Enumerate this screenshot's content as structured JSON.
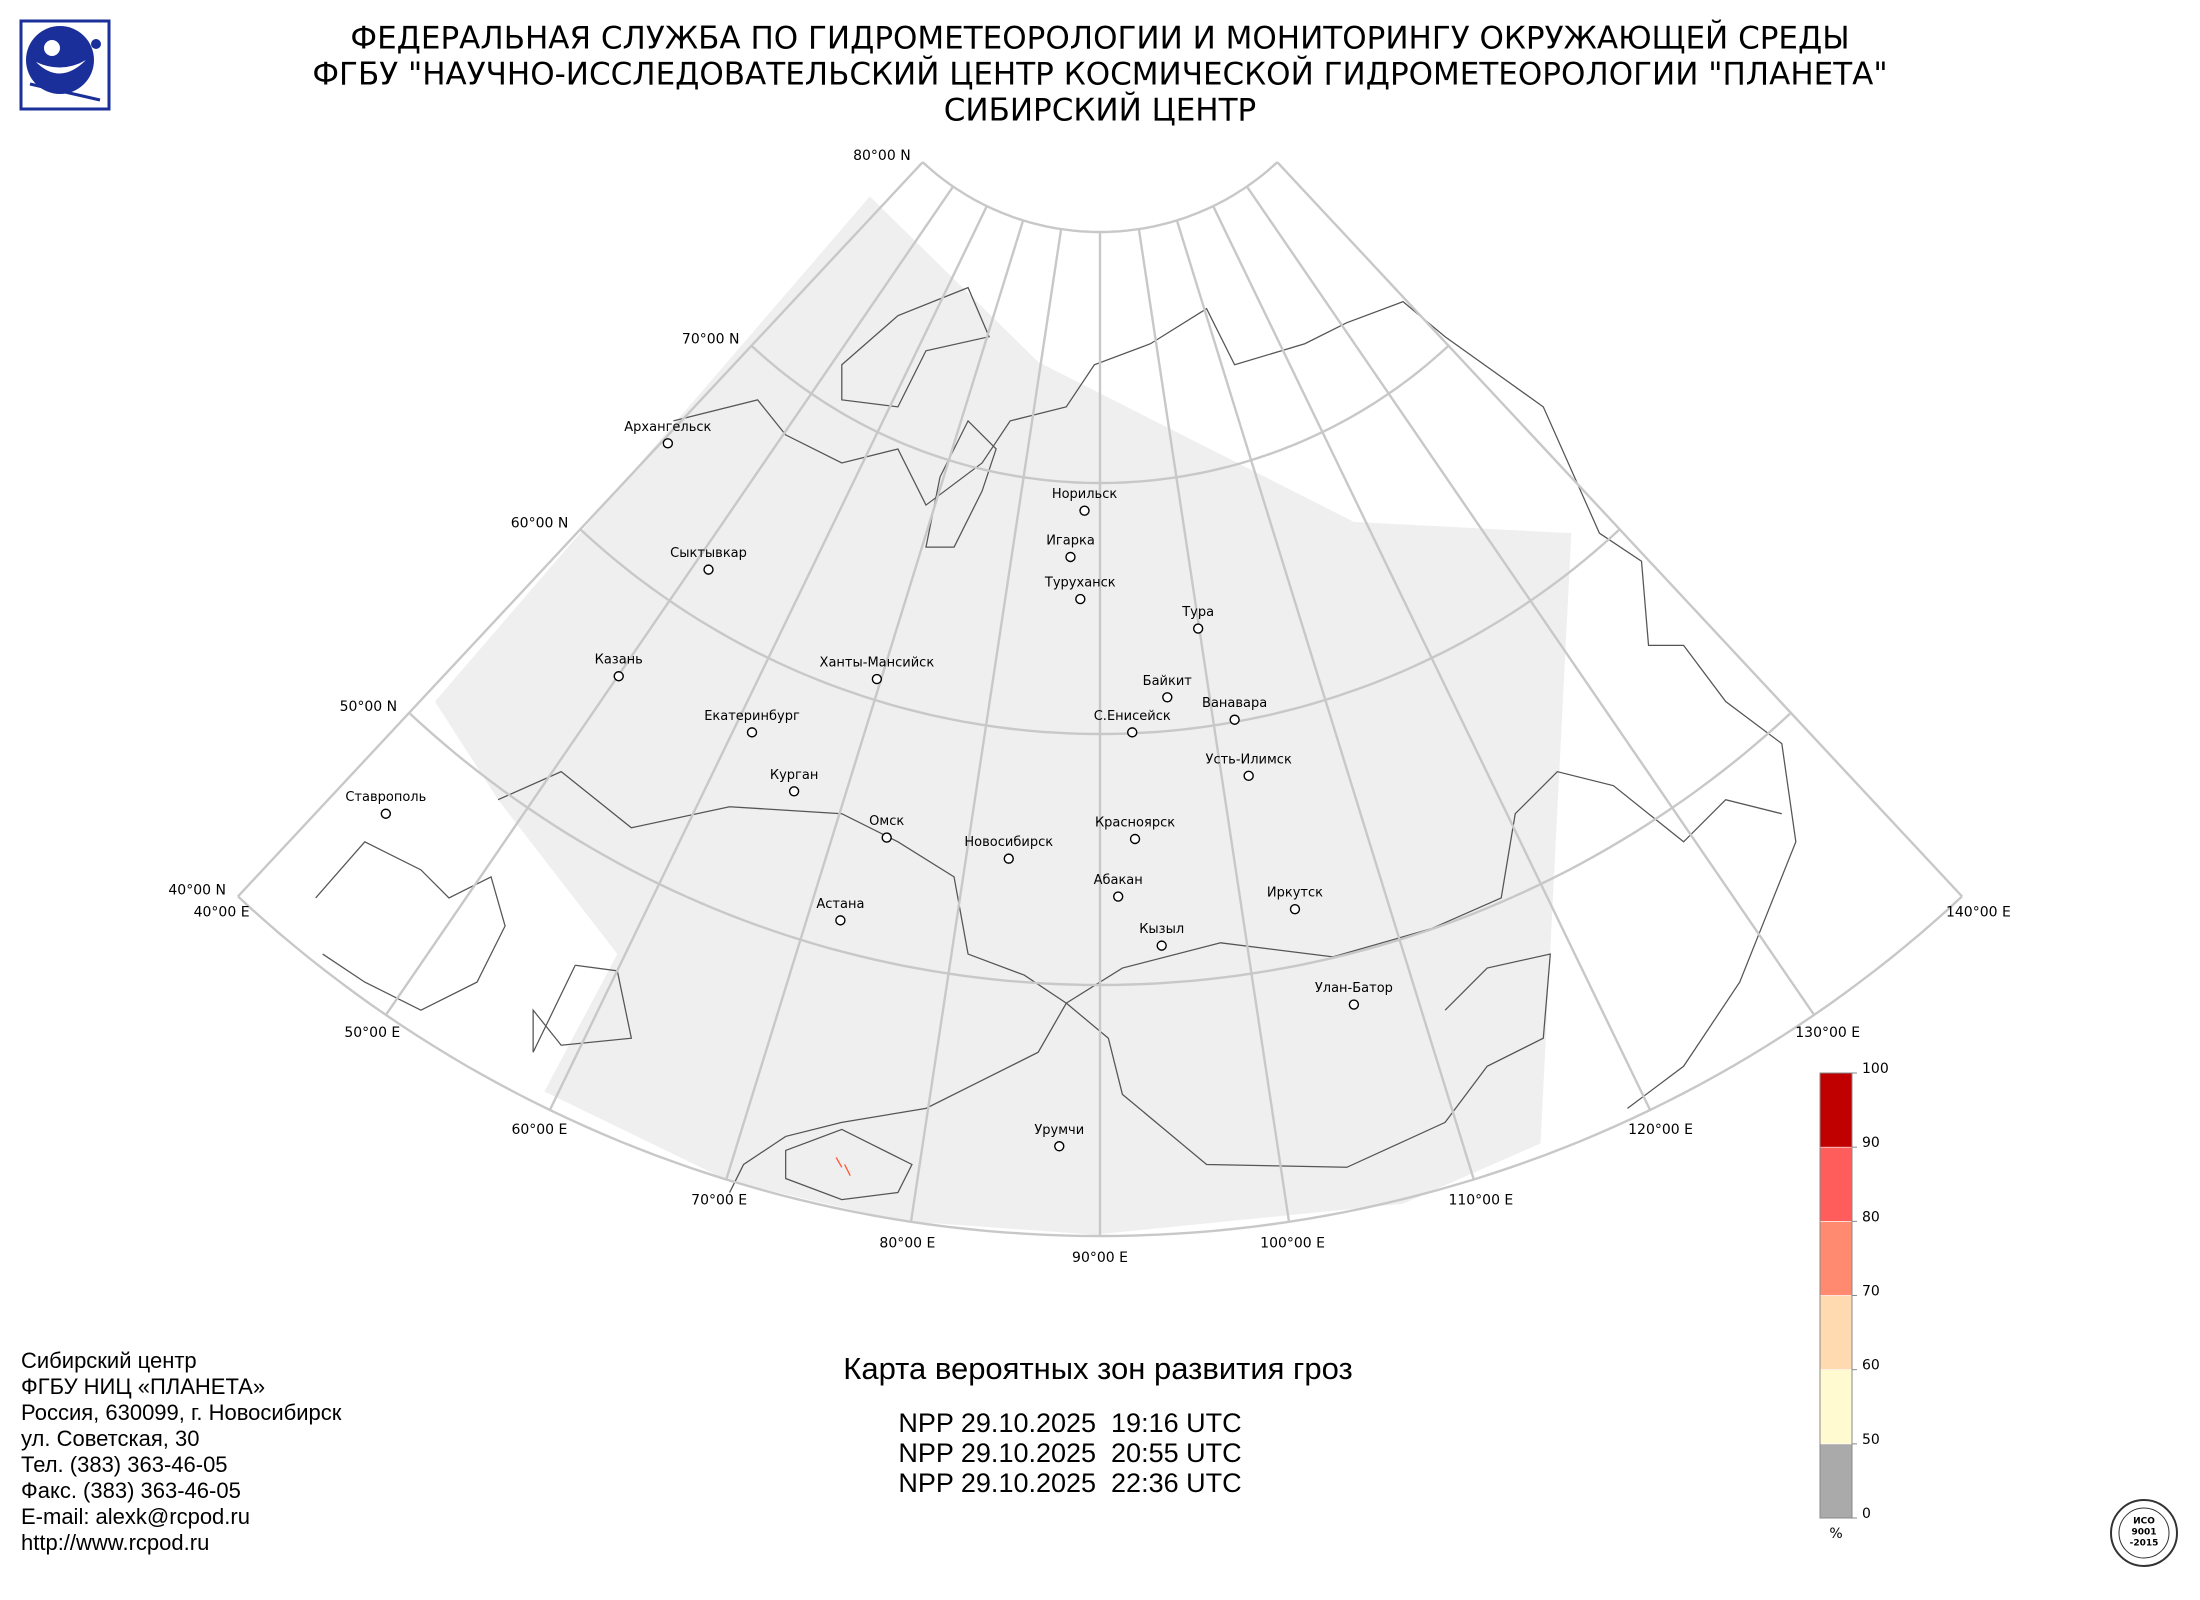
{
  "header": {
    "lines": [
      "ФЕДЕРАЛЬНАЯ СЛУЖБА ПО ГИДРОМЕТЕОРОЛОГИИ И МОНИТОРИНГУ ОКРУЖАЮЩЕЙ СРЕДЫ",
      "ФГБУ \"НАУЧНО-ИССЛЕДОВАТЕЛЬСКИЙ ЦЕНТР КОСМИЧЕСКОЙ ГИДРОМЕТЕОРОЛОГИИ \"ПЛАНЕТА\"",
      "СИБИРСКИЙ ЦЕНТР"
    ]
  },
  "map": {
    "lat_ticks": [
      {
        "value": 40,
        "label": "40°00 N"
      },
      {
        "value": 50,
        "label": "50°00 N"
      },
      {
        "value": 60,
        "label": "60°00 N"
      },
      {
        "value": 70,
        "label": "70°00 N"
      },
      {
        "value": 80,
        "label": "80°00 N"
      }
    ],
    "lon_ticks": [
      {
        "value": 40,
        "label": "40°00 E"
      },
      {
        "value": 50,
        "label": "50°00 E"
      },
      {
        "value": 60,
        "label": "60°00 E"
      },
      {
        "value": 70,
        "label": "70°00 E"
      },
      {
        "value": 80,
        "label": "80°00 E"
      },
      {
        "value": 90,
        "label": "90°00 E"
      },
      {
        "value": 100,
        "label": "100°00 E"
      },
      {
        "value": 110,
        "label": "110°00 E"
      },
      {
        "value": 120,
        "label": "120°00 E"
      },
      {
        "value": 130,
        "label": "130°00 E"
      },
      {
        "value": 140,
        "label": "140°00 E"
      }
    ],
    "cities": [
      "Архангельск",
      "Сыктывкар",
      "Казань",
      "Екатеринбург",
      "Курган",
      "Ставрополь",
      "Ханты-Мансийск",
      "Омск",
      "Новосибирск",
      "Астана",
      "Норильск",
      "Игарка",
      "Туруханск",
      "Тура",
      "Байкит",
      "С.Енисейск",
      "Ванавара",
      "Усть-Илимск",
      "Красноярск",
      "Абакан",
      "Кызыл",
      "Иркутск",
      "Улан-Батор",
      "Урумчи"
    ]
  },
  "product": {
    "title": "Карта вероятных зон развития гроз",
    "passes": [
      "NPP 29.10.2025  19:16 UTC",
      "NPP 29.10.2025  20:55 UTC",
      "NPP 29.10.2025  22:36 UTC"
    ]
  },
  "contacts": [
    "Сибирский центр",
    "ФГБУ НИЦ «ПЛАНЕТА»",
    "Россия, 630099, г. Новосибирск",
    "ул. Советская, 30",
    "Тел. (383) 363-46-05",
    "Факс. (383) 363-46-05",
    "E-mail: alexk@rcpod.ru",
    "http://www.rcpod.ru"
  ],
  "colorbar": {
    "ticks": [
      0,
      50,
      60,
      70,
      80,
      90,
      100
    ],
    "colors": [
      "#aaaaaa",
      "#fffad0",
      "#ffdab0",
      "#ff8a70",
      "#ff5c5c",
      "#c00000"
    ],
    "unit": "%"
  },
  "badge": {
    "lines": [
      "ИСО",
      "9001",
      "-2015"
    ]
  }
}
